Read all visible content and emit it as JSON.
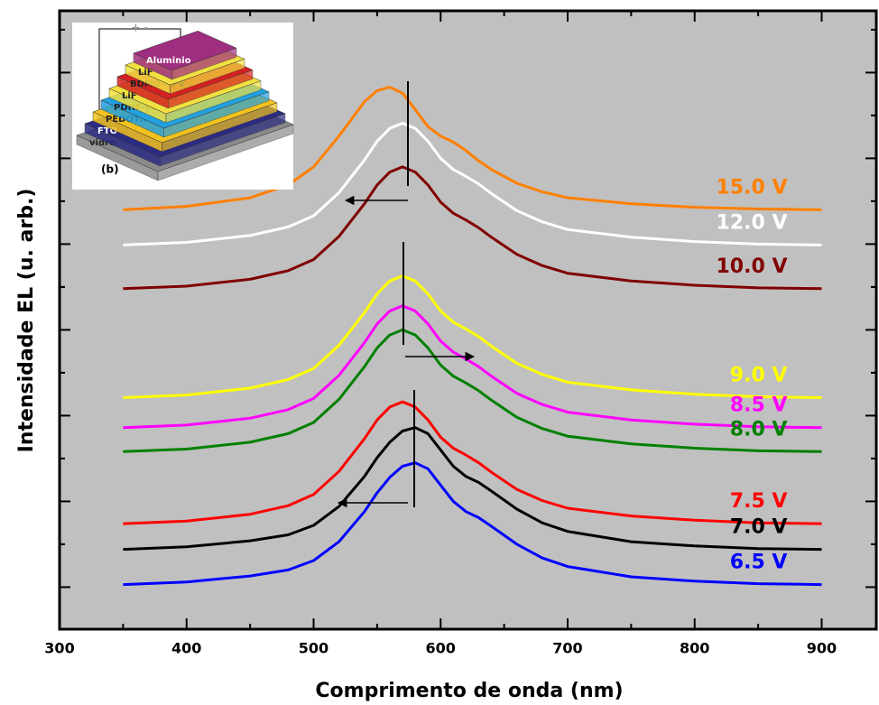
{
  "chart_data": {
    "type": "line",
    "xlabel": "Comprimento de onda (nm)",
    "ylabel": "Intensidade EL (u. arb.)",
    "x": [
      350,
      400,
      450,
      480,
      500,
      520,
      540,
      550,
      560,
      570,
      580,
      590,
      600,
      610,
      620,
      630,
      640,
      660,
      680,
      700,
      750,
      800,
      850,
      900
    ],
    "series": [
      {
        "name": "15.0 V",
        "color": "#ff8000",
        "values": [
          4.4,
          4.44,
          4.54,
          4.69,
          4.9,
          5.26,
          5.66,
          5.79,
          5.83,
          5.76,
          5.57,
          5.37,
          5.26,
          5.19,
          5.09,
          4.97,
          4.87,
          4.71,
          4.61,
          4.54,
          4.47,
          4.43,
          4.41,
          4.4
        ]
      },
      {
        "name": "12.0 V",
        "color": "#ffffff",
        "values": [
          3.99,
          4.02,
          4.1,
          4.2,
          4.33,
          4.6,
          4.98,
          5.2,
          5.35,
          5.41,
          5.35,
          5.2,
          5.0,
          4.87,
          4.79,
          4.7,
          4.59,
          4.39,
          4.26,
          4.17,
          4.08,
          4.03,
          4.0,
          3.99
        ]
      },
      {
        "name": "10.0 V",
        "color": "#800000",
        "values": [
          3.48,
          3.51,
          3.59,
          3.69,
          3.82,
          4.09,
          4.47,
          4.69,
          4.84,
          4.9,
          4.84,
          4.69,
          4.49,
          4.36,
          4.28,
          4.19,
          4.08,
          3.88,
          3.75,
          3.66,
          3.57,
          3.52,
          3.49,
          3.48
        ]
      },
      {
        "name": "9.0 V",
        "color": "#ffff00",
        "values": [
          2.21,
          2.24,
          2.32,
          2.42,
          2.55,
          2.82,
          3.2,
          3.42,
          3.57,
          3.63,
          3.57,
          3.42,
          3.22,
          3.09,
          3.01,
          2.92,
          2.81,
          2.61,
          2.48,
          2.39,
          2.3,
          2.25,
          2.22,
          2.21
        ]
      },
      {
        "name": "8.5 V",
        "color": "#ff00ff",
        "values": [
          1.86,
          1.89,
          1.97,
          2.07,
          2.2,
          2.47,
          2.85,
          3.07,
          3.22,
          3.28,
          3.22,
          3.07,
          2.87,
          2.74,
          2.66,
          2.57,
          2.46,
          2.26,
          2.13,
          2.04,
          1.95,
          1.9,
          1.87,
          1.86
        ]
      },
      {
        "name": "8.0 V",
        "color": "#008000",
        "values": [
          1.58,
          1.61,
          1.69,
          1.79,
          1.92,
          2.19,
          2.57,
          2.79,
          2.94,
          3.0,
          2.94,
          2.79,
          2.59,
          2.46,
          2.38,
          2.29,
          2.18,
          1.98,
          1.85,
          1.76,
          1.67,
          1.62,
          1.59,
          1.58
        ]
      },
      {
        "name": "7.5 V",
        "color": "#ff0000",
        "values": [
          0.74,
          0.77,
          0.85,
          0.95,
          1.08,
          1.35,
          1.73,
          1.95,
          2.1,
          2.16,
          2.1,
          1.95,
          1.75,
          1.62,
          1.54,
          1.45,
          1.34,
          1.14,
          1.01,
          0.92,
          0.83,
          0.78,
          0.75,
          0.74
        ]
      },
      {
        "name": "7.0 V",
        "color": "#000000",
        "values": [
          0.44,
          0.47,
          0.54,
          0.61,
          0.72,
          0.94,
          1.29,
          1.51,
          1.69,
          1.82,
          1.86,
          1.79,
          1.6,
          1.41,
          1.29,
          1.22,
          1.12,
          0.91,
          0.75,
          0.65,
          0.53,
          0.48,
          0.45,
          0.44
        ]
      },
      {
        "name": "6.5 V",
        "color": "#0000ff",
        "values": [
          0.03,
          0.06,
          0.13,
          0.2,
          0.31,
          0.53,
          0.88,
          1.1,
          1.28,
          1.41,
          1.45,
          1.38,
          1.19,
          1.0,
          0.88,
          0.81,
          0.71,
          0.5,
          0.34,
          0.24,
          0.12,
          0.07,
          0.04,
          0.03
        ]
      }
    ],
    "xlim": [
      300,
      943
    ],
    "xticks": [
      300,
      400,
      500,
      600,
      700,
      800,
      900
    ],
    "ylim": [
      -0.49,
      6.72
    ],
    "yticks": [
      0,
      1,
      2,
      3,
      4,
      5,
      6
    ],
    "background": "#c0c0c0"
  },
  "inset": {
    "polarity": "+ -",
    "label": "(b)",
    "layers": [
      "vidro",
      "FTO",
      "PEDOT:PSS",
      "PDHF-ECz",
      "LiF",
      "BDMO-PPV",
      "LiF",
      "Aluminio"
    ]
  }
}
